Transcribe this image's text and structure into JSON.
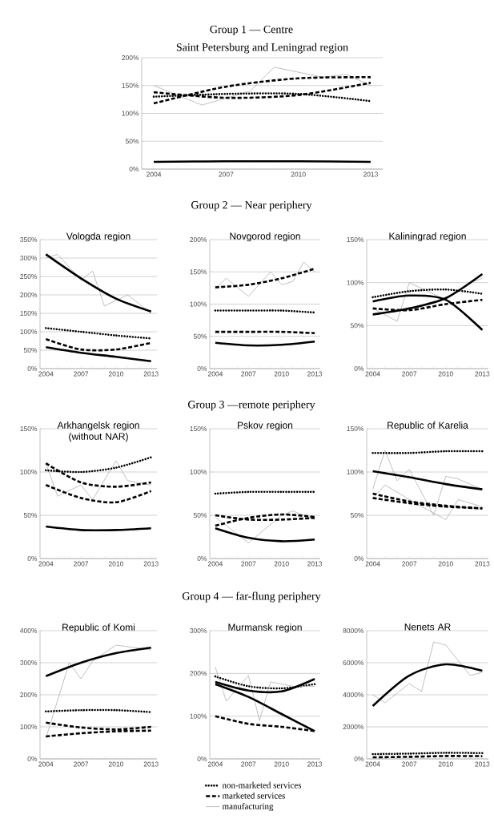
{
  "chart_data": [
    {
      "type": "line",
      "title": "Saint Petersburg and Leningrad region",
      "annotations": [
        "Group 1 — Centre"
      ],
      "xlim": [
        2003.5,
        2013.5
      ],
      "xticks": [
        2004,
        2007,
        2010,
        2013
      ],
      "ylim": [
        0,
        200
      ],
      "yticks": [
        {
          "value": 0,
          "label": "0%"
        },
        {
          "value": 50,
          "label": "50%"
        },
        {
          "value": 100,
          "label": "100%"
        },
        {
          "value": 150,
          "label": "150%"
        },
        {
          "value": 200,
          "label": "200%"
        }
      ],
      "grid": "y",
      "series": [
        {
          "color": "#b0b0b0",
          "line_style": "solid",
          "x": [
            2004,
            2006,
            2008,
            2009,
            2011,
            2012,
            2013
          ],
          "values": [
            150,
            115,
            140,
            183,
            165,
            170,
            150
          ]
        },
        {
          "color": "#000000",
          "line_style": "dotted",
          "x": [
            2004,
            2007,
            2010,
            2013
          ],
          "values": [
            130,
            135,
            135,
            122
          ]
        },
        {
          "color": "#000000",
          "line_style": "dashed",
          "x": [
            2004,
            2007,
            2010,
            2013
          ],
          "values": [
            138,
            128,
            133,
            155
          ]
        },
        {
          "color": "#000000",
          "line_style": "dashed",
          "x": [
            2004,
            2007,
            2010,
            2013
          ],
          "values": [
            118,
            148,
            163,
            165
          ]
        },
        {
          "color": "#000000",
          "line_style": "solid",
          "x": [
            2004,
            2007,
            2010,
            2013
          ],
          "values": [
            13,
            14,
            14,
            13
          ]
        }
      ]
    },
    {
      "type": "line",
      "title": "Vologda region",
      "annotations": [
        "Group 2 — Near periphery"
      ],
      "xlim": [
        2003.5,
        2013.5
      ],
      "xticks": [
        2004,
        2007,
        2010,
        2013
      ],
      "ylim": [
        0,
        350
      ],
      "yticks": [
        {
          "value": 0,
          "label": "0%"
        },
        {
          "value": 50,
          "label": "50%"
        },
        {
          "value": 100,
          "label": "100%"
        },
        {
          "value": 150,
          "label": "150%"
        },
        {
          "value": 200,
          "label": "200%"
        },
        {
          "value": 250,
          "label": "250%"
        },
        {
          "value": 300,
          "label": "300%"
        },
        {
          "value": 350,
          "label": "350%"
        }
      ],
      "grid": "y",
      "series": [
        {
          "color": "#b0b0b0",
          "line_style": "solid",
          "x": [
            2004,
            2005,
            2007,
            2008,
            2009,
            2011,
            2013
          ],
          "values": [
            300,
            310,
            240,
            265,
            170,
            200,
            150
          ]
        },
        {
          "color": "#000000",
          "line_style": "solid",
          "x": [
            2004,
            2007,
            2010,
            2013
          ],
          "values": [
            310,
            245,
            190,
            155
          ]
        },
        {
          "color": "#000000",
          "line_style": "dotted",
          "x": [
            2004,
            2007,
            2010,
            2013
          ],
          "values": [
            110,
            100,
            90,
            82
          ]
        },
        {
          "color": "#000000",
          "line_style": "dashed",
          "x": [
            2004,
            2007,
            2010,
            2013
          ],
          "values": [
            80,
            52,
            52,
            70
          ]
        },
        {
          "color": "#000000",
          "line_style": "solid",
          "x": [
            2004,
            2007,
            2010,
            2013
          ],
          "values": [
            58,
            43,
            32,
            20
          ]
        }
      ]
    },
    {
      "type": "line",
      "title": "Novgorod region",
      "xlim": [
        2003.5,
        2013.5
      ],
      "xticks": [
        2004,
        2007,
        2010,
        2013
      ],
      "ylim": [
        0,
        200
      ],
      "yticks": [
        {
          "value": 0,
          "label": "0%"
        },
        {
          "value": 50,
          "label": "50%"
        },
        {
          "value": 100,
          "label": "100%"
        },
        {
          "value": 150,
          "label": "150%"
        },
        {
          "value": 200,
          "label": "200%"
        }
      ],
      "grid": "y",
      "series": [
        {
          "color": "#b0b0b0",
          "line_style": "solid",
          "x": [
            2004,
            2005,
            2007,
            2009,
            2010,
            2011,
            2012,
            2013
          ],
          "values": [
            125,
            140,
            112,
            150,
            130,
            135,
            165,
            150
          ]
        },
        {
          "color": "#000000",
          "line_style": "dashed",
          "x": [
            2004,
            2007,
            2010,
            2013
          ],
          "values": [
            126,
            130,
            140,
            155
          ]
        },
        {
          "color": "#000000",
          "line_style": "dotted",
          "x": [
            2004,
            2007,
            2010,
            2013
          ],
          "values": [
            90,
            90,
            90,
            87
          ]
        },
        {
          "color": "#000000",
          "line_style": "dashed",
          "x": [
            2004,
            2007,
            2010,
            2013
          ],
          "values": [
            57,
            57,
            57,
            55
          ]
        },
        {
          "color": "#000000",
          "line_style": "solid",
          "x": [
            2004,
            2007,
            2010,
            2013
          ],
          "values": [
            40,
            36,
            37,
            42
          ]
        }
      ]
    },
    {
      "type": "line",
      "title": "Kaliningrad region",
      "xlim": [
        2003.5,
        2013.5
      ],
      "xticks": [
        2004,
        2007,
        2010,
        2013
      ],
      "ylim": [
        0,
        150
      ],
      "yticks": [
        {
          "value": 0,
          "label": "0%"
        },
        {
          "value": 50,
          "label": "50%"
        },
        {
          "value": 100,
          "label": "100%"
        },
        {
          "value": 150,
          "label": "150%"
        }
      ],
      "grid": "y",
      "series": [
        {
          "color": "#b0b0b0",
          "line_style": "solid",
          "x": [
            2004,
            2006,
            2007,
            2010,
            2012,
            2013
          ],
          "values": [
            70,
            55,
            100,
            80,
            100,
            105
          ]
        },
        {
          "color": "#000000",
          "line_style": "dotted",
          "x": [
            2004,
            2007,
            2010,
            2013
          ],
          "values": [
            83,
            90,
            92,
            87
          ]
        },
        {
          "color": "#000000",
          "line_style": "dashed",
          "x": [
            2004,
            2007,
            2010,
            2013
          ],
          "values": [
            70,
            68,
            75,
            80
          ]
        },
        {
          "color": "#000000",
          "line_style": "solid",
          "x": [
            2004,
            2007,
            2010,
            2013
          ],
          "values": [
            63,
            70,
            82,
            110
          ]
        },
        {
          "color": "#000000",
          "line_style": "solid",
          "x": [
            2004,
            2007,
            2010,
            2013
          ],
          "values": [
            78,
            85,
            80,
            45
          ]
        }
      ]
    },
    {
      "type": "line",
      "title": "Arkhangelsk region (without NAR)",
      "annotations": [
        "Group 3 —remote periphery"
      ],
      "xlim": [
        2003.5,
        2013.5
      ],
      "xticks": [
        2004,
        2007,
        2010,
        2013
      ],
      "ylim": [
        0,
        150
      ],
      "yticks": [
        {
          "value": 0,
          "label": "0%"
        },
        {
          "value": 50,
          "label": "50%"
        },
        {
          "value": 100,
          "label": "100%"
        },
        {
          "value": 150,
          "label": "150%"
        }
      ],
      "grid": "y",
      "series": [
        {
          "color": "#b0b0b0",
          "line_style": "solid",
          "x": [
            2004,
            2005,
            2007,
            2008,
            2010,
            2011,
            2013
          ],
          "values": [
            110,
            72,
            85,
            68,
            113,
            90,
            85
          ]
        },
        {
          "color": "#000000",
          "line_style": "dotted",
          "x": [
            2004,
            2007,
            2010,
            2013
          ],
          "values": [
            102,
            100,
            105,
            117
          ]
        },
        {
          "color": "#000000",
          "line_style": "dashed",
          "x": [
            2004,
            2007,
            2010,
            2013
          ],
          "values": [
            110,
            88,
            83,
            88
          ]
        },
        {
          "color": "#000000",
          "line_style": "dashed",
          "x": [
            2004,
            2007,
            2010,
            2013
          ],
          "values": [
            85,
            70,
            65,
            78
          ]
        },
        {
          "color": "#000000",
          "line_style": "solid",
          "x": [
            2004,
            2007,
            2010,
            2013
          ],
          "values": [
            37,
            33,
            33,
            35
          ]
        }
      ]
    },
    {
      "type": "line",
      "title": "Pskov region",
      "xlim": [
        2003.5,
        2013.5
      ],
      "xticks": [
        2004,
        2007,
        2010,
        2013
      ],
      "ylim": [
        0,
        150
      ],
      "yticks": [
        {
          "value": 0,
          "label": "0%"
        },
        {
          "value": 50,
          "label": "50%"
        },
        {
          "value": 100,
          "label": "100%"
        },
        {
          "value": 150,
          "label": "150%"
        }
      ],
      "grid": "y",
      "series": [
        {
          "color": "#b0b0b0",
          "line_style": "solid",
          "x": [
            2004,
            2007,
            2010,
            2011,
            2013
          ],
          "values": [
            48,
            18,
            50,
            55,
            45
          ]
        },
        {
          "color": "#000000",
          "line_style": "dotted",
          "x": [
            2004,
            2007,
            2010,
            2013
          ],
          "values": [
            75,
            77,
            77,
            77
          ]
        },
        {
          "color": "#000000",
          "line_style": "dashed",
          "x": [
            2004,
            2007,
            2010,
            2013
          ],
          "values": [
            38,
            47,
            51,
            48
          ]
        },
        {
          "color": "#000000",
          "line_style": "dashed",
          "x": [
            2004,
            2007,
            2010,
            2013
          ],
          "values": [
            50,
            45,
            45,
            47
          ]
        },
        {
          "color": "#000000",
          "line_style": "solid",
          "x": [
            2004,
            2007,
            2010,
            2013
          ],
          "values": [
            35,
            24,
            20,
            22
          ]
        }
      ]
    },
    {
      "type": "line",
      "title": "Republic of Karelia",
      "xlim": [
        2003.5,
        2013.5
      ],
      "xticks": [
        2004,
        2007,
        2010,
        2013
      ],
      "ylim": [
        0,
        150
      ],
      "yticks": [
        {
          "value": 0,
          "label": "0%"
        },
        {
          "value": 50,
          "label": "50%"
        },
        {
          "value": 100,
          "label": "100%"
        },
        {
          "value": 150,
          "label": "150%"
        }
      ],
      "grid": "y",
      "series": [
        {
          "color": "#b0b0b0",
          "line_style": "solid",
          "x": [
            2004,
            2005,
            2006,
            2007,
            2009,
            2010,
            2011,
            2013
          ],
          "values": [
            80,
            125,
            90,
            103,
            50,
            95,
            92,
            80
          ]
        },
        {
          "color": "#b0b0b0",
          "line_style": "solid",
          "x": [
            2004,
            2005,
            2008,
            2010,
            2011,
            2013
          ],
          "values": [
            70,
            85,
            60,
            45,
            68,
            60
          ]
        },
        {
          "color": "#000000",
          "line_style": "dotted",
          "x": [
            2004,
            2007,
            2010,
            2013
          ],
          "values": [
            122,
            122,
            124,
            124
          ]
        },
        {
          "color": "#000000",
          "line_style": "solid",
          "x": [
            2004,
            2007,
            2010,
            2013
          ],
          "values": [
            101,
            94,
            86,
            80
          ]
        },
        {
          "color": "#000000",
          "line_style": "dashed",
          "x": [
            2004,
            2007,
            2010,
            2013
          ],
          "values": [
            75,
            66,
            61,
            58
          ]
        },
        {
          "color": "#000000",
          "line_style": "dashed",
          "x": [
            2004,
            2007,
            2010,
            2013
          ],
          "values": [
            70,
            64,
            60,
            58
          ]
        }
      ]
    },
    {
      "type": "line",
      "title": "Republic of Komi",
      "annotations": [
        "Group 4 — far-flung periphery"
      ],
      "xlim": [
        2003.5,
        2013.5
      ],
      "xticks": [
        2004,
        2007,
        2010,
        2013
      ],
      "ylim": [
        0,
        400
      ],
      "yticks": [
        {
          "value": 0,
          "label": "0%"
        },
        {
          "value": 100,
          "label": "100%"
        },
        {
          "value": 200,
          "label": "200%"
        },
        {
          "value": 300,
          "label": "300%"
        },
        {
          "value": 400,
          "label": "400%"
        }
      ],
      "grid": "y",
      "series": [
        {
          "color": "#b0b0b0",
          "line_style": "solid",
          "x": [
            2004,
            2006,
            2007,
            2008,
            2010,
            2013
          ],
          "values": [
            65,
            300,
            250,
            305,
            355,
            340
          ]
        },
        {
          "color": "#000000",
          "line_style": "solid",
          "x": [
            2004,
            2007,
            2010,
            2013
          ],
          "values": [
            258,
            300,
            330,
            347
          ]
        },
        {
          "color": "#000000",
          "line_style": "dotted",
          "x": [
            2004,
            2007,
            2010,
            2013
          ],
          "values": [
            148,
            152,
            152,
            146
          ]
        },
        {
          "color": "#000000",
          "line_style": "dashed",
          "x": [
            2004,
            2007,
            2010,
            2013
          ],
          "values": [
            113,
            98,
            92,
            100
          ]
        },
        {
          "color": "#000000",
          "line_style": "dashed",
          "x": [
            2004,
            2007,
            2010,
            2013
          ],
          "values": [
            70,
            80,
            86,
            88
          ]
        }
      ]
    },
    {
      "type": "line",
      "title": "Murmansk region",
      "legend": "bottom",
      "xlim": [
        2003.5,
        2013.5
      ],
      "xticks": [
        2004,
        2007,
        2010,
        2013
      ],
      "ylim": [
        0,
        300
      ],
      "yticks": [
        {
          "value": 0,
          "label": "0%"
        },
        {
          "value": 100,
          "label": "100%"
        },
        {
          "value": 200,
          "label": "200%"
        },
        {
          "value": 300,
          "label": "300%"
        }
      ],
      "grid": "y",
      "series": [
        {
          "name": "non-marketed services",
          "color": "#000000",
          "line_style": "dotted",
          "x": [
            2004,
            2007,
            2010,
            2013
          ],
          "values": [
            193,
            170,
            165,
            175
          ]
        },
        {
          "name": "marketed services",
          "color": "#000000",
          "line_style": "dashed",
          "x": [
            2004,
            2007,
            2010,
            2013
          ],
          "values": [
            100,
            82,
            75,
            65
          ]
        },
        {
          "name": "manufacturing",
          "color": "#b0b0b0",
          "line_style": "solid",
          "x": [
            2004,
            2005,
            2007,
            2008,
            2009,
            2011,
            2013
          ],
          "values": [
            215,
            135,
            195,
            90,
            180,
            170,
            170
          ]
        },
        {
          "color": "#000000",
          "line_style": "solid",
          "x": [
            2004,
            2007,
            2010,
            2013
          ],
          "values": [
            180,
            160,
            158,
            187
          ]
        },
        {
          "color": "#000000",
          "line_style": "solid",
          "x": [
            2004,
            2007,
            2010,
            2013
          ],
          "values": [
            175,
            145,
            105,
            65
          ]
        }
      ]
    },
    {
      "type": "line",
      "title": "Nenets AR",
      "xlim": [
        2003.5,
        2013.5
      ],
      "xticks": [
        2004,
        2007,
        2010,
        2013
      ],
      "ylim": [
        0,
        8000
      ],
      "yticks": [
        {
          "value": 0,
          "label": "0%"
        },
        {
          "value": 2000,
          "label": "2000%"
        },
        {
          "value": 4000,
          "label": "4000%"
        },
        {
          "value": 6000,
          "label": "6000%"
        },
        {
          "value": 8000,
          "label": "8000%"
        }
      ],
      "grid": "y",
      "series": [
        {
          "color": "#b0b0b0",
          "line_style": "solid",
          "x": [
            2004,
            2005,
            2007,
            2008,
            2009,
            2010,
            2012,
            2013
          ],
          "values": [
            4000,
            3500,
            4700,
            4200,
            7300,
            7100,
            5200,
            5400
          ]
        },
        {
          "color": "#000000",
          "line_style": "solid",
          "x": [
            2004,
            2007,
            2010,
            2013
          ],
          "values": [
            3300,
            5200,
            5900,
            5500
          ]
        },
        {
          "color": "#000000",
          "line_style": "dotted",
          "x": [
            2004,
            2007,
            2010,
            2013
          ],
          "values": [
            300,
            330,
            380,
            360
          ]
        },
        {
          "color": "#000000",
          "line_style": "dashed",
          "x": [
            2004,
            2007,
            2010,
            2013
          ],
          "values": [
            100,
            130,
            180,
            170
          ]
        }
      ]
    }
  ]
}
